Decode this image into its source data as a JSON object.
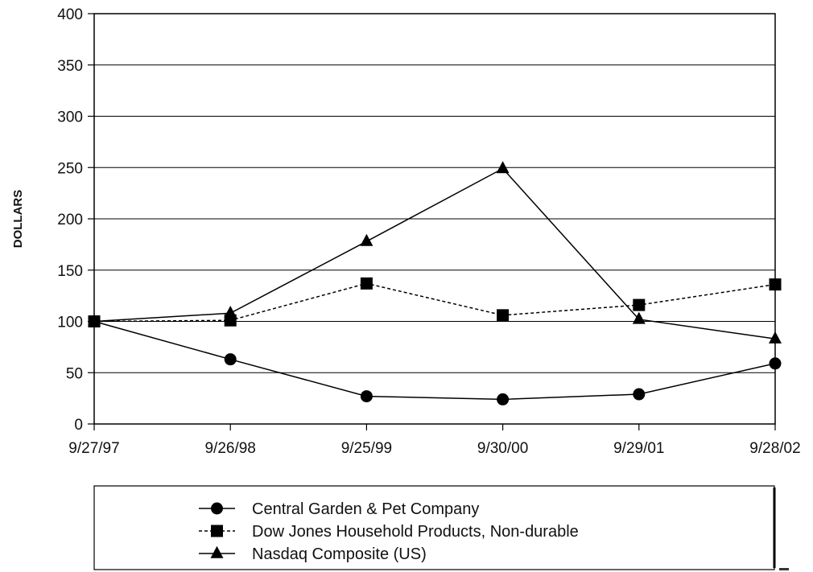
{
  "chart_data": {
    "type": "line",
    "title": "",
    "xlabel": "",
    "ylabel": "DOLLARS",
    "categories": [
      "9/27/97",
      "9/26/98",
      "9/25/99",
      "9/30/00",
      "9/29/01",
      "9/28/02"
    ],
    "ylim": [
      0,
      400
    ],
    "yticks": [
      0,
      50,
      100,
      150,
      200,
      250,
      300,
      350,
      400
    ],
    "grid": "horizontal",
    "legend_position": "bottom",
    "series": [
      {
        "name": "Central Garden & Pet Company",
        "marker": "circle",
        "line": "solid",
        "color": "#000000",
        "values": [
          100,
          63,
          27,
          24,
          29,
          59
        ]
      },
      {
        "name": "Dow Jones Household Products, Non-durable",
        "marker": "square",
        "line": "dashed",
        "color": "#000000",
        "values": [
          100,
          101,
          137,
          106,
          116,
          136
        ]
      },
      {
        "name": "Nasdaq Composite (US)",
        "marker": "triangle",
        "line": "solid",
        "color": "#000000",
        "values": [
          100,
          108,
          178,
          249,
          102,
          83
        ]
      }
    ]
  }
}
